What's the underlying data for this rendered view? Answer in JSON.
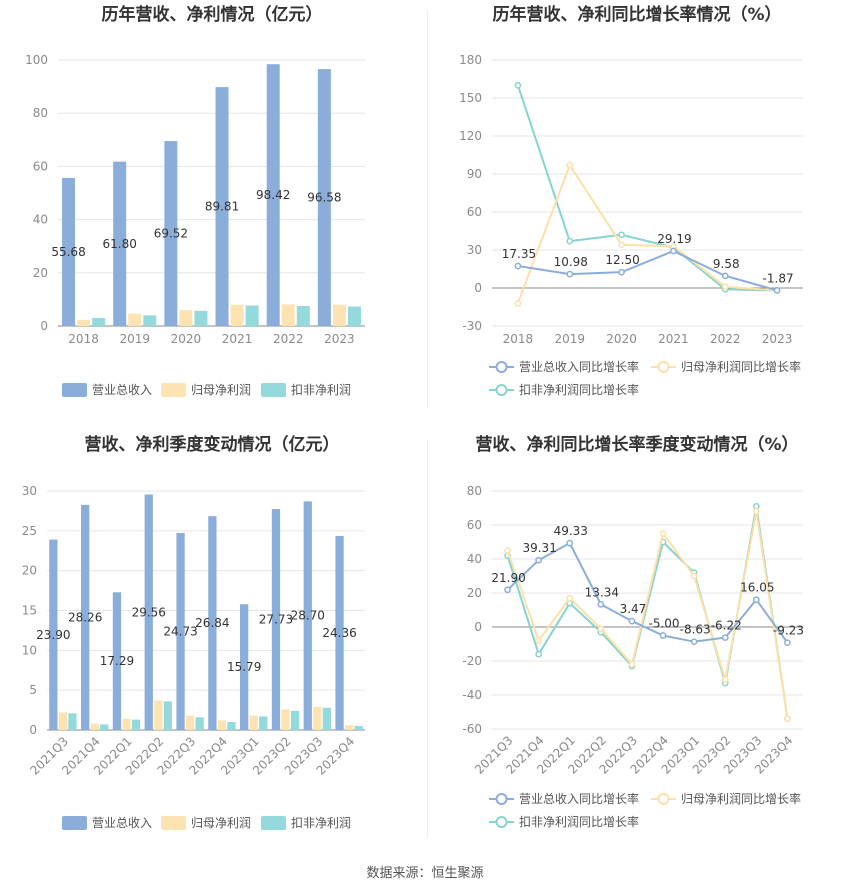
{
  "source_text": "数据来源：恒生聚源",
  "colors": {
    "revenue": "#8badd9",
    "net_profit": "#fde3b2",
    "deducted_profit": "#94d9dc",
    "revenue_line": "#8badd9",
    "net_line": "#fde0a6",
    "deducted_line": "#86d3d1",
    "grid": "#e6e6e6",
    "axis": "#888888"
  },
  "chart_data": [
    {
      "id": "annual_bar",
      "type": "bar",
      "title": "历年营收、净利情况（亿元）",
      "categories": [
        "2018",
        "2019",
        "2020",
        "2021",
        "2022",
        "2023"
      ],
      "yticks": [
        "0",
        "20",
        "40",
        "60",
        "80",
        "100"
      ],
      "ylim": [
        0,
        100
      ],
      "series": [
        {
          "name": "营业总收入",
          "values": [
            55.68,
            61.8,
            69.52,
            89.81,
            98.42,
            96.58
          ],
          "labels": [
            "55.68",
            "61.80",
            "69.52",
            "89.81",
            "98.42",
            "96.58"
          ]
        },
        {
          "name": "归母净利润",
          "values": [
            2.3,
            4.6,
            6.0,
            8.0,
            8.1,
            8.0
          ]
        },
        {
          "name": "扣非净利润",
          "values": [
            3.0,
            4.0,
            5.7,
            7.7,
            7.5,
            7.3
          ]
        }
      ],
      "legend_position": "bottom"
    },
    {
      "id": "annual_line",
      "type": "line",
      "title": "历年营收、净利同比增长率情况（%）",
      "categories": [
        "2018",
        "2019",
        "2020",
        "2021",
        "2022",
        "2023"
      ],
      "yticks": [
        "-30",
        "0",
        "30",
        "60",
        "90",
        "120",
        "150",
        "180"
      ],
      "ylim": [
        -30,
        180
      ],
      "series": [
        {
          "name": "营业总收入同比增长率",
          "values": [
            17.35,
            10.98,
            12.5,
            29.19,
            9.58,
            -1.87
          ],
          "labels": [
            "17.35",
            "10.98",
            "12.50",
            "29.19",
            "9.58",
            "-1.87"
          ]
        },
        {
          "name": "归母净利润同比增长率",
          "values": [
            -12,
            97,
            34,
            33,
            1,
            -2
          ]
        },
        {
          "name": "扣非净利润同比增长率",
          "values": [
            160,
            37,
            42,
            32,
            -1,
            -2
          ]
        }
      ],
      "legend_position": "bottom"
    },
    {
      "id": "quarter_bar",
      "type": "bar",
      "title": "营收、净利季度变动情况（亿元）",
      "categories": [
        "2021Q3",
        "2021Q4",
        "2022Q1",
        "2022Q2",
        "2022Q3",
        "2022Q4",
        "2023Q1",
        "2023Q2",
        "2023Q3",
        "2023Q4"
      ],
      "yticks": [
        "0",
        "5",
        "10",
        "15",
        "20",
        "25",
        "30"
      ],
      "ylim": [
        0,
        30
      ],
      "series": [
        {
          "name": "营业总收入",
          "values": [
            23.9,
            28.26,
            17.29,
            29.56,
            24.73,
            26.84,
            15.79,
            27.73,
            28.7,
            24.36
          ],
          "labels": [
            "23.90",
            "28.26",
            "17.29",
            "29.56",
            "24.73",
            "26.84",
            "15.79",
            "27.73",
            "28.70",
            "24.36"
          ]
        },
        {
          "name": "归母净利润",
          "values": [
            2.2,
            0.8,
            1.4,
            3.7,
            1.8,
            1.2,
            1.8,
            2.6,
            2.9,
            0.6
          ]
        },
        {
          "name": "扣非净利润",
          "values": [
            2.1,
            0.7,
            1.3,
            3.6,
            1.6,
            1.0,
            1.7,
            2.4,
            2.8,
            0.5
          ]
        }
      ],
      "legend_position": "bottom"
    },
    {
      "id": "quarter_line",
      "type": "line",
      "title": "营收、净利同比增长率季度变动情况（%）",
      "categories": [
        "2021Q3",
        "2021Q4",
        "2022Q1",
        "2022Q2",
        "2022Q3",
        "2022Q4",
        "2023Q1",
        "2023Q2",
        "2023Q3",
        "2023Q4"
      ],
      "yticks": [
        "-60",
        "-40",
        "-20",
        "0",
        "20",
        "40",
        "60",
        "80"
      ],
      "ylim": [
        -60,
        80
      ],
      "series": [
        {
          "name": "营业总收入同比增长率",
          "values": [
            21.9,
            39.31,
            49.33,
            13.34,
            3.47,
            -5.0,
            -8.63,
            -6.22,
            16.05,
            -9.23
          ],
          "labels": [
            "21.90",
            "39.31",
            "49.33",
            "13.34",
            "3.47",
            "-5.00",
            "-8.63",
            "-6.22",
            "16.05",
            "-9.23"
          ]
        },
        {
          "name": "归母净利润同比增长率",
          "values": [
            45,
            -8,
            17,
            -1,
            -22,
            55,
            30,
            -31,
            68,
            -54
          ]
        },
        {
          "name": "扣非净利润同比增长率",
          "values": [
            42,
            -16,
            14,
            -3,
            -23,
            50,
            32,
            -33,
            71,
            -54
          ]
        }
      ],
      "legend_position": "bottom"
    }
  ]
}
